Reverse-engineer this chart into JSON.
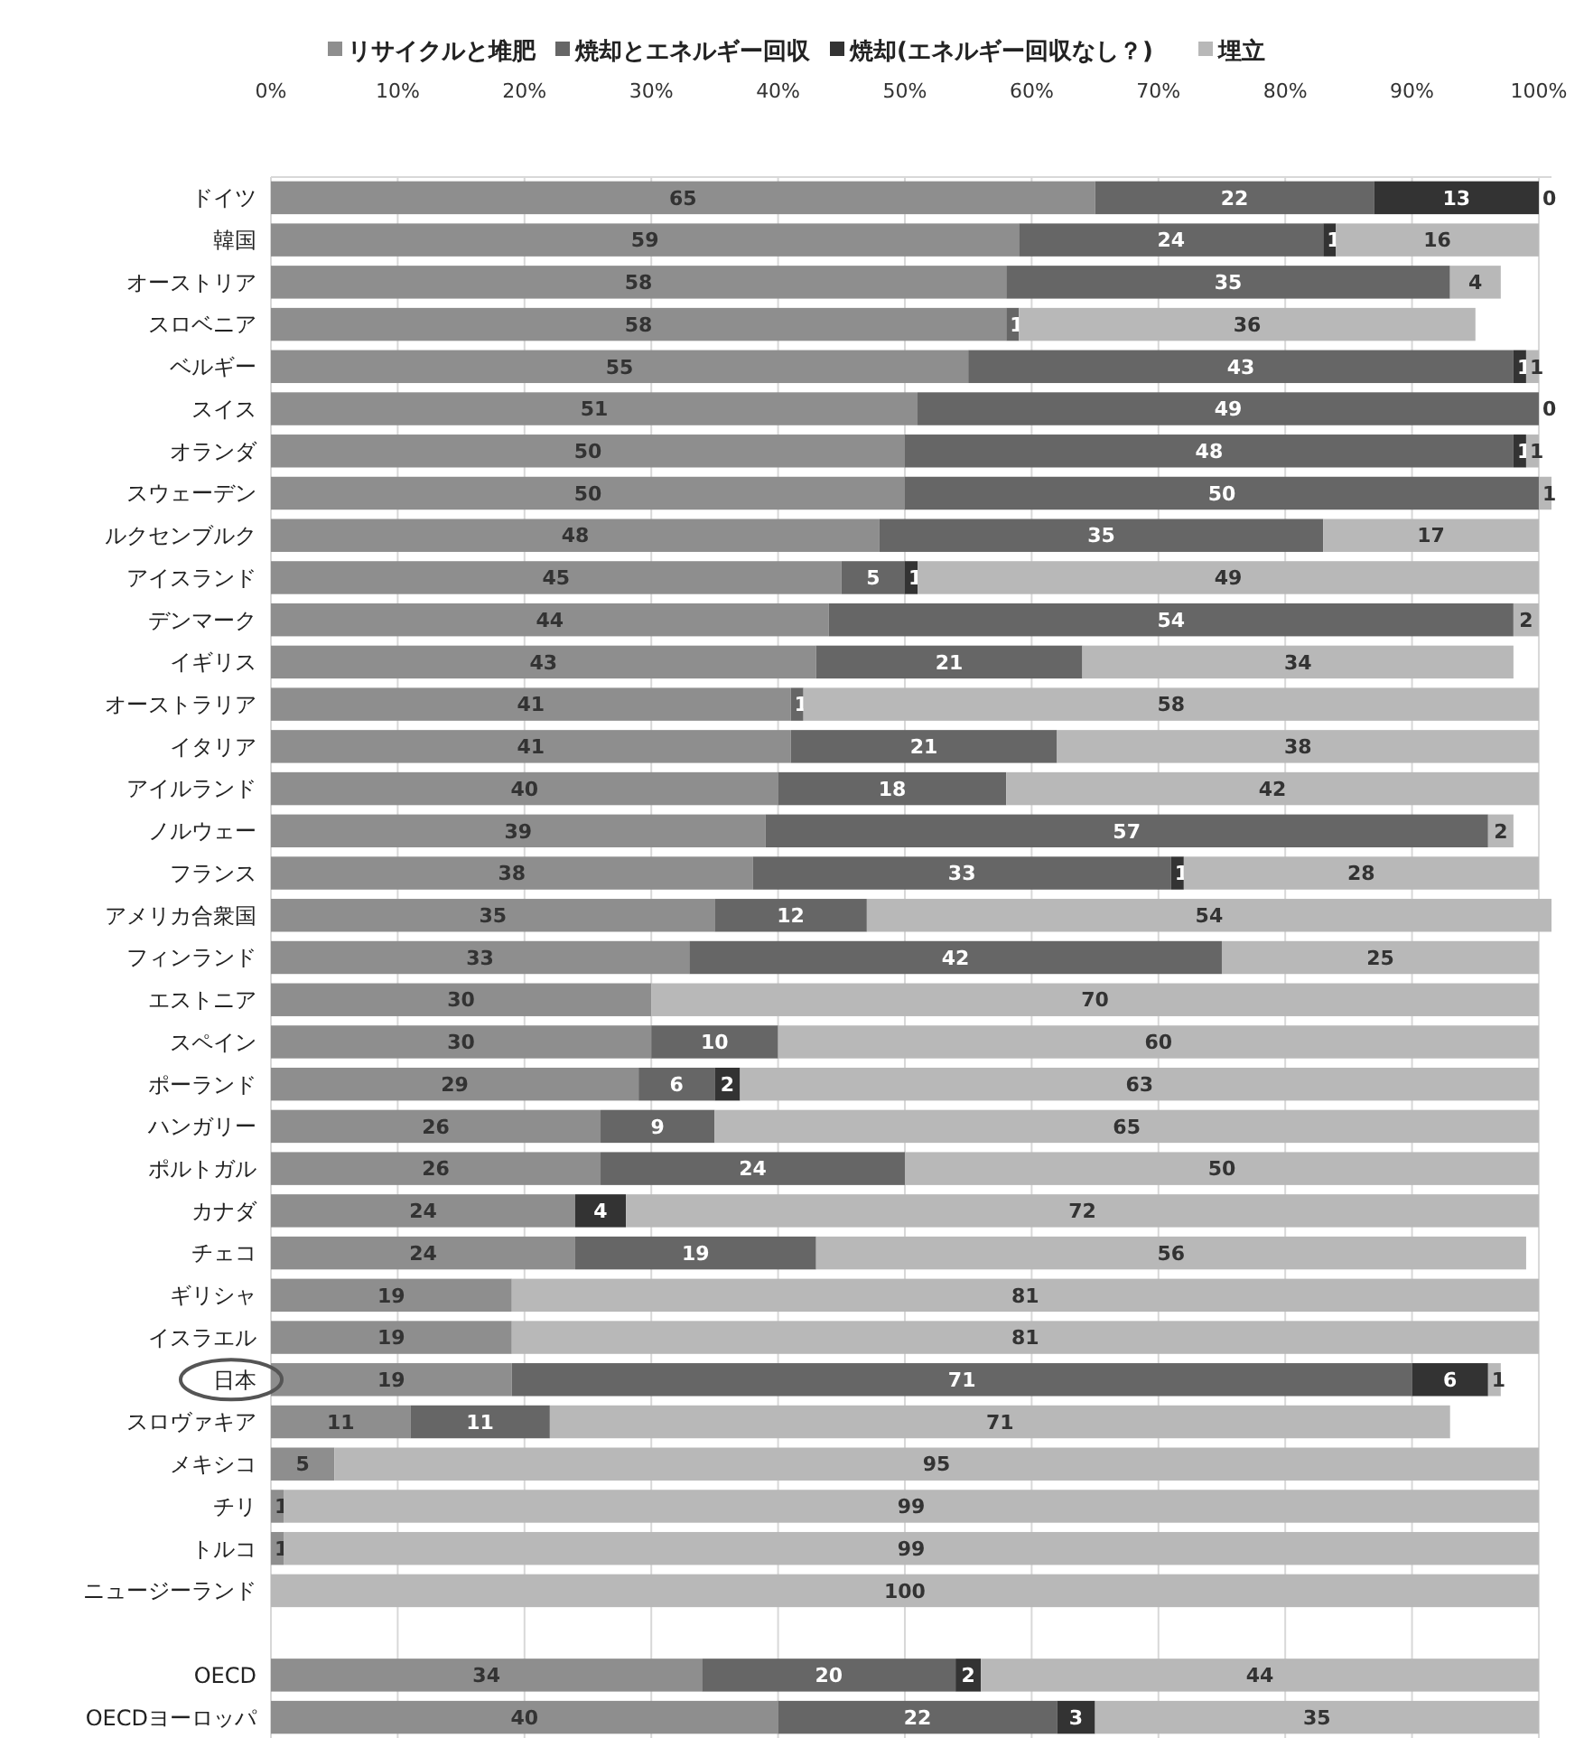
{
  "chart_data": {
    "type": "bar",
    "orientation": "horizontal",
    "stacked": true,
    "data_labels": true,
    "grid": "x",
    "legend": "top",
    "categories": [
      "ドイツ",
      "韓国",
      "オーストリア",
      "スロベニア",
      "ベルギー",
      "スイス",
      "オランダ",
      "スウェーデン",
      "ルクセンブルク",
      "アイスランド",
      "デンマーク",
      "イギリス",
      "オーストラリア",
      "イタリア",
      "アイルランド",
      "ノルウェー",
      "フランス",
      "アメリカ合衆国",
      "フィンランド",
      "エストニア",
      "スペイン",
      "ポーランド",
      "ハンガリー",
      "ポルトガル",
      "カナダ",
      "チェコ",
      "ギリシャ",
      "イスラエル",
      "日本",
      "スロヴァキア",
      "メキシコ",
      "チリ",
      "トルコ",
      "ニュージーランド",
      null,
      "OECD",
      "OECDヨーロッパ"
    ],
    "xlim": [
      0,
      101
    ],
    "xticks": [
      {
        "value": 0,
        "label": "0%"
      },
      {
        "value": 10,
        "label": "10%"
      },
      {
        "value": 20,
        "label": "20%"
      },
      {
        "value": 30,
        "label": "30%"
      },
      {
        "value": 40,
        "label": "40%"
      },
      {
        "value": 50,
        "label": "50%"
      },
      {
        "value": 60,
        "label": "60%"
      },
      {
        "value": 70,
        "label": "70%"
      },
      {
        "value": 80,
        "label": "80%"
      },
      {
        "value": 90,
        "label": "90%"
      },
      {
        "value": 100,
        "label": "100%"
      }
    ],
    "series": [
      {
        "name": "リサイクルと堆肥",
        "color": "#8e8e8e",
        "values": [
          65,
          59,
          58,
          58,
          55,
          51,
          50,
          50,
          48,
          45,
          44,
          43,
          41,
          41,
          40,
          39,
          38,
          35,
          33,
          30,
          30,
          29,
          26,
          26,
          24,
          24,
          19,
          19,
          19,
          11,
          5,
          1,
          1,
          null,
          null,
          34,
          40
        ]
      },
      {
        "name": "焼却とエネルギー回収",
        "color": "#666666",
        "values": [
          22,
          24,
          35,
          1,
          43,
          49,
          48,
          50,
          35,
          5,
          54,
          21,
          1,
          21,
          18,
          57,
          33,
          12,
          42,
          null,
          10,
          6,
          9,
          24,
          null,
          19,
          null,
          null,
          71,
          11,
          null,
          null,
          null,
          null,
          null,
          20,
          22
        ]
      },
      {
        "name": "焼却(エネルギー回収なし？)",
        "color": "#333333",
        "values": [
          13,
          1,
          null,
          null,
          1,
          null,
          1,
          null,
          null,
          1,
          null,
          null,
          null,
          null,
          null,
          null,
          1,
          null,
          null,
          null,
          null,
          2,
          null,
          null,
          4,
          null,
          null,
          null,
          6,
          null,
          null,
          null,
          null,
          null,
          null,
          2,
          3
        ]
      },
      {
        "name": "埋立",
        "color": "#b8b8b8",
        "values": [
          0,
          16,
          4,
          36,
          1,
          0,
          1,
          1,
          17,
          49,
          2,
          34,
          58,
          38,
          42,
          2,
          28,
          54,
          25,
          70,
          60,
          63,
          65,
          50,
          72,
          56,
          81,
          81,
          1,
          71,
          95,
          99,
          99,
          100,
          null,
          44,
          35
        ]
      }
    ]
  }
}
